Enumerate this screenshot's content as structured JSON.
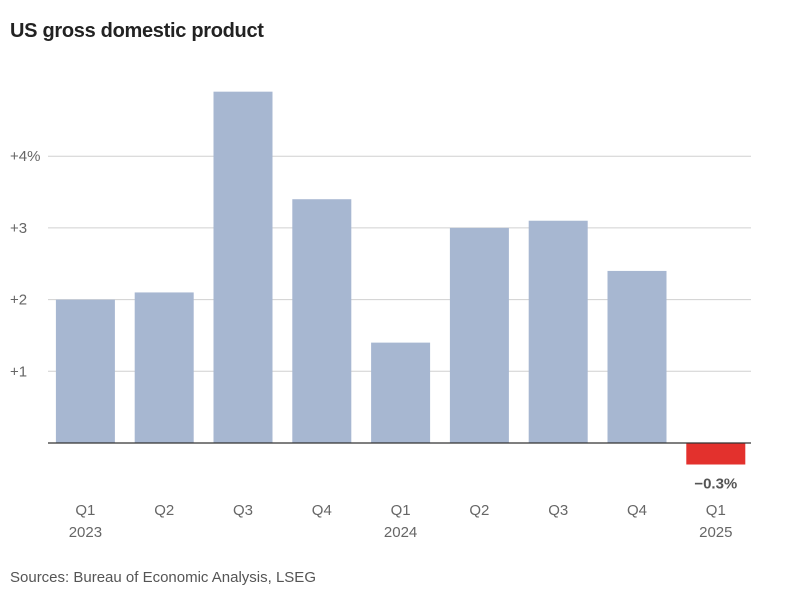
{
  "title": "US gross domestic product",
  "source": "Sources: Bureau of Economic Analysis, LSEG",
  "colors": {
    "positive": "#a7b7d1",
    "negative": "#e3312d",
    "grid": "#d0d0d0",
    "axis": "#333333"
  },
  "chart_data": {
    "type": "bar",
    "title": "US gross domestic product",
    "xlabel": "",
    "ylabel": "",
    "ylim": [
      -0.6,
      5.2
    ],
    "grid": true,
    "y_ticks": [
      {
        "value": 1,
        "label": "+1"
      },
      {
        "value": 2,
        "label": "+2"
      },
      {
        "value": 3,
        "label": "+3"
      },
      {
        "value": 4,
        "label": "+4%"
      }
    ],
    "categories": [
      {
        "quarter": "Q1",
        "year": "2023"
      },
      {
        "quarter": "Q2",
        "year": ""
      },
      {
        "quarter": "Q3",
        "year": ""
      },
      {
        "quarter": "Q4",
        "year": ""
      },
      {
        "quarter": "Q1",
        "year": "2024"
      },
      {
        "quarter": "Q2",
        "year": ""
      },
      {
        "quarter": "Q3",
        "year": ""
      },
      {
        "quarter": "Q4",
        "year": ""
      },
      {
        "quarter": "Q1",
        "year": "2025"
      }
    ],
    "values": [
      2.0,
      2.1,
      4.9,
      3.4,
      1.4,
      3.0,
      3.1,
      2.4,
      -0.3
    ],
    "annotations": [
      {
        "index": 8,
        "text": "−0.3%"
      }
    ]
  }
}
